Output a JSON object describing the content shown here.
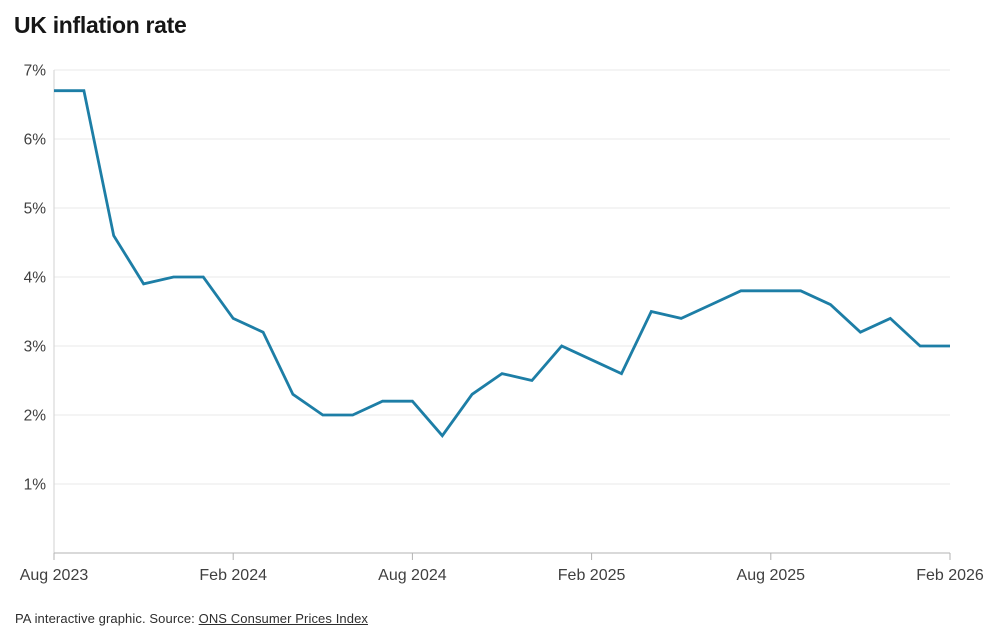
{
  "title": "UK inflation rate",
  "footer": {
    "prefix": "PA interactive graphic. Source: ",
    "link_label": "ONS Consumer Prices Index"
  },
  "chart_data": {
    "type": "line",
    "title": "UK inflation rate",
    "x": [
      "Aug 2023",
      "Sep 2023",
      "Oct 2023",
      "Nov 2023",
      "Dec 2023",
      "Jan 2024",
      "Feb 2024",
      "Mar 2024",
      "Apr 2024",
      "May 2024",
      "Jun 2024",
      "Jul 2024",
      "Aug 2024",
      "Sep 2024",
      "Oct 2024",
      "Nov 2024",
      "Dec 2024",
      "Jan 2025",
      "Feb 2025",
      "Mar 2025",
      "Apr 2025",
      "May 2025",
      "Jun 2025",
      "Jul 2025",
      "Aug 2025",
      "Sep 2025",
      "Oct 2025",
      "Nov 2025",
      "Dec 2025",
      "Jan 2026",
      "Feb 2026"
    ],
    "series": [
      {
        "name": "UK inflation rate",
        "values": [
          6.7,
          6.7,
          4.6,
          3.9,
          4.0,
          4.0,
          3.4,
          3.2,
          2.3,
          2.0,
          2.0,
          2.2,
          2.2,
          1.7,
          2.3,
          2.6,
          2.5,
          3.0,
          2.8,
          2.6,
          3.5,
          3.4,
          3.6,
          3.8,
          3.8,
          3.8,
          3.6,
          3.2,
          3.4,
          3.0,
          3.0
        ]
      }
    ],
    "ylim": [
      0,
      7
    ],
    "y_ticks": [
      1,
      2,
      3,
      4,
      5,
      6,
      7
    ],
    "y_tick_suffix": "%",
    "x_tick_indices": [
      0,
      6,
      12,
      18,
      24,
      30
    ],
    "x_tick_labels": [
      "Aug 2023",
      "Feb 2024",
      "Aug 2024",
      "Feb 2025",
      "Aug 2025",
      "Feb 2026"
    ],
    "grid": "horizontal",
    "legend": "none",
    "colors": {
      "line": "#1d7ea6",
      "grid": "#e9e9e9",
      "plot_border": "#d2d2d2",
      "axis": "#b3b3b3",
      "tick_label": "#3f3f3f"
    }
  }
}
